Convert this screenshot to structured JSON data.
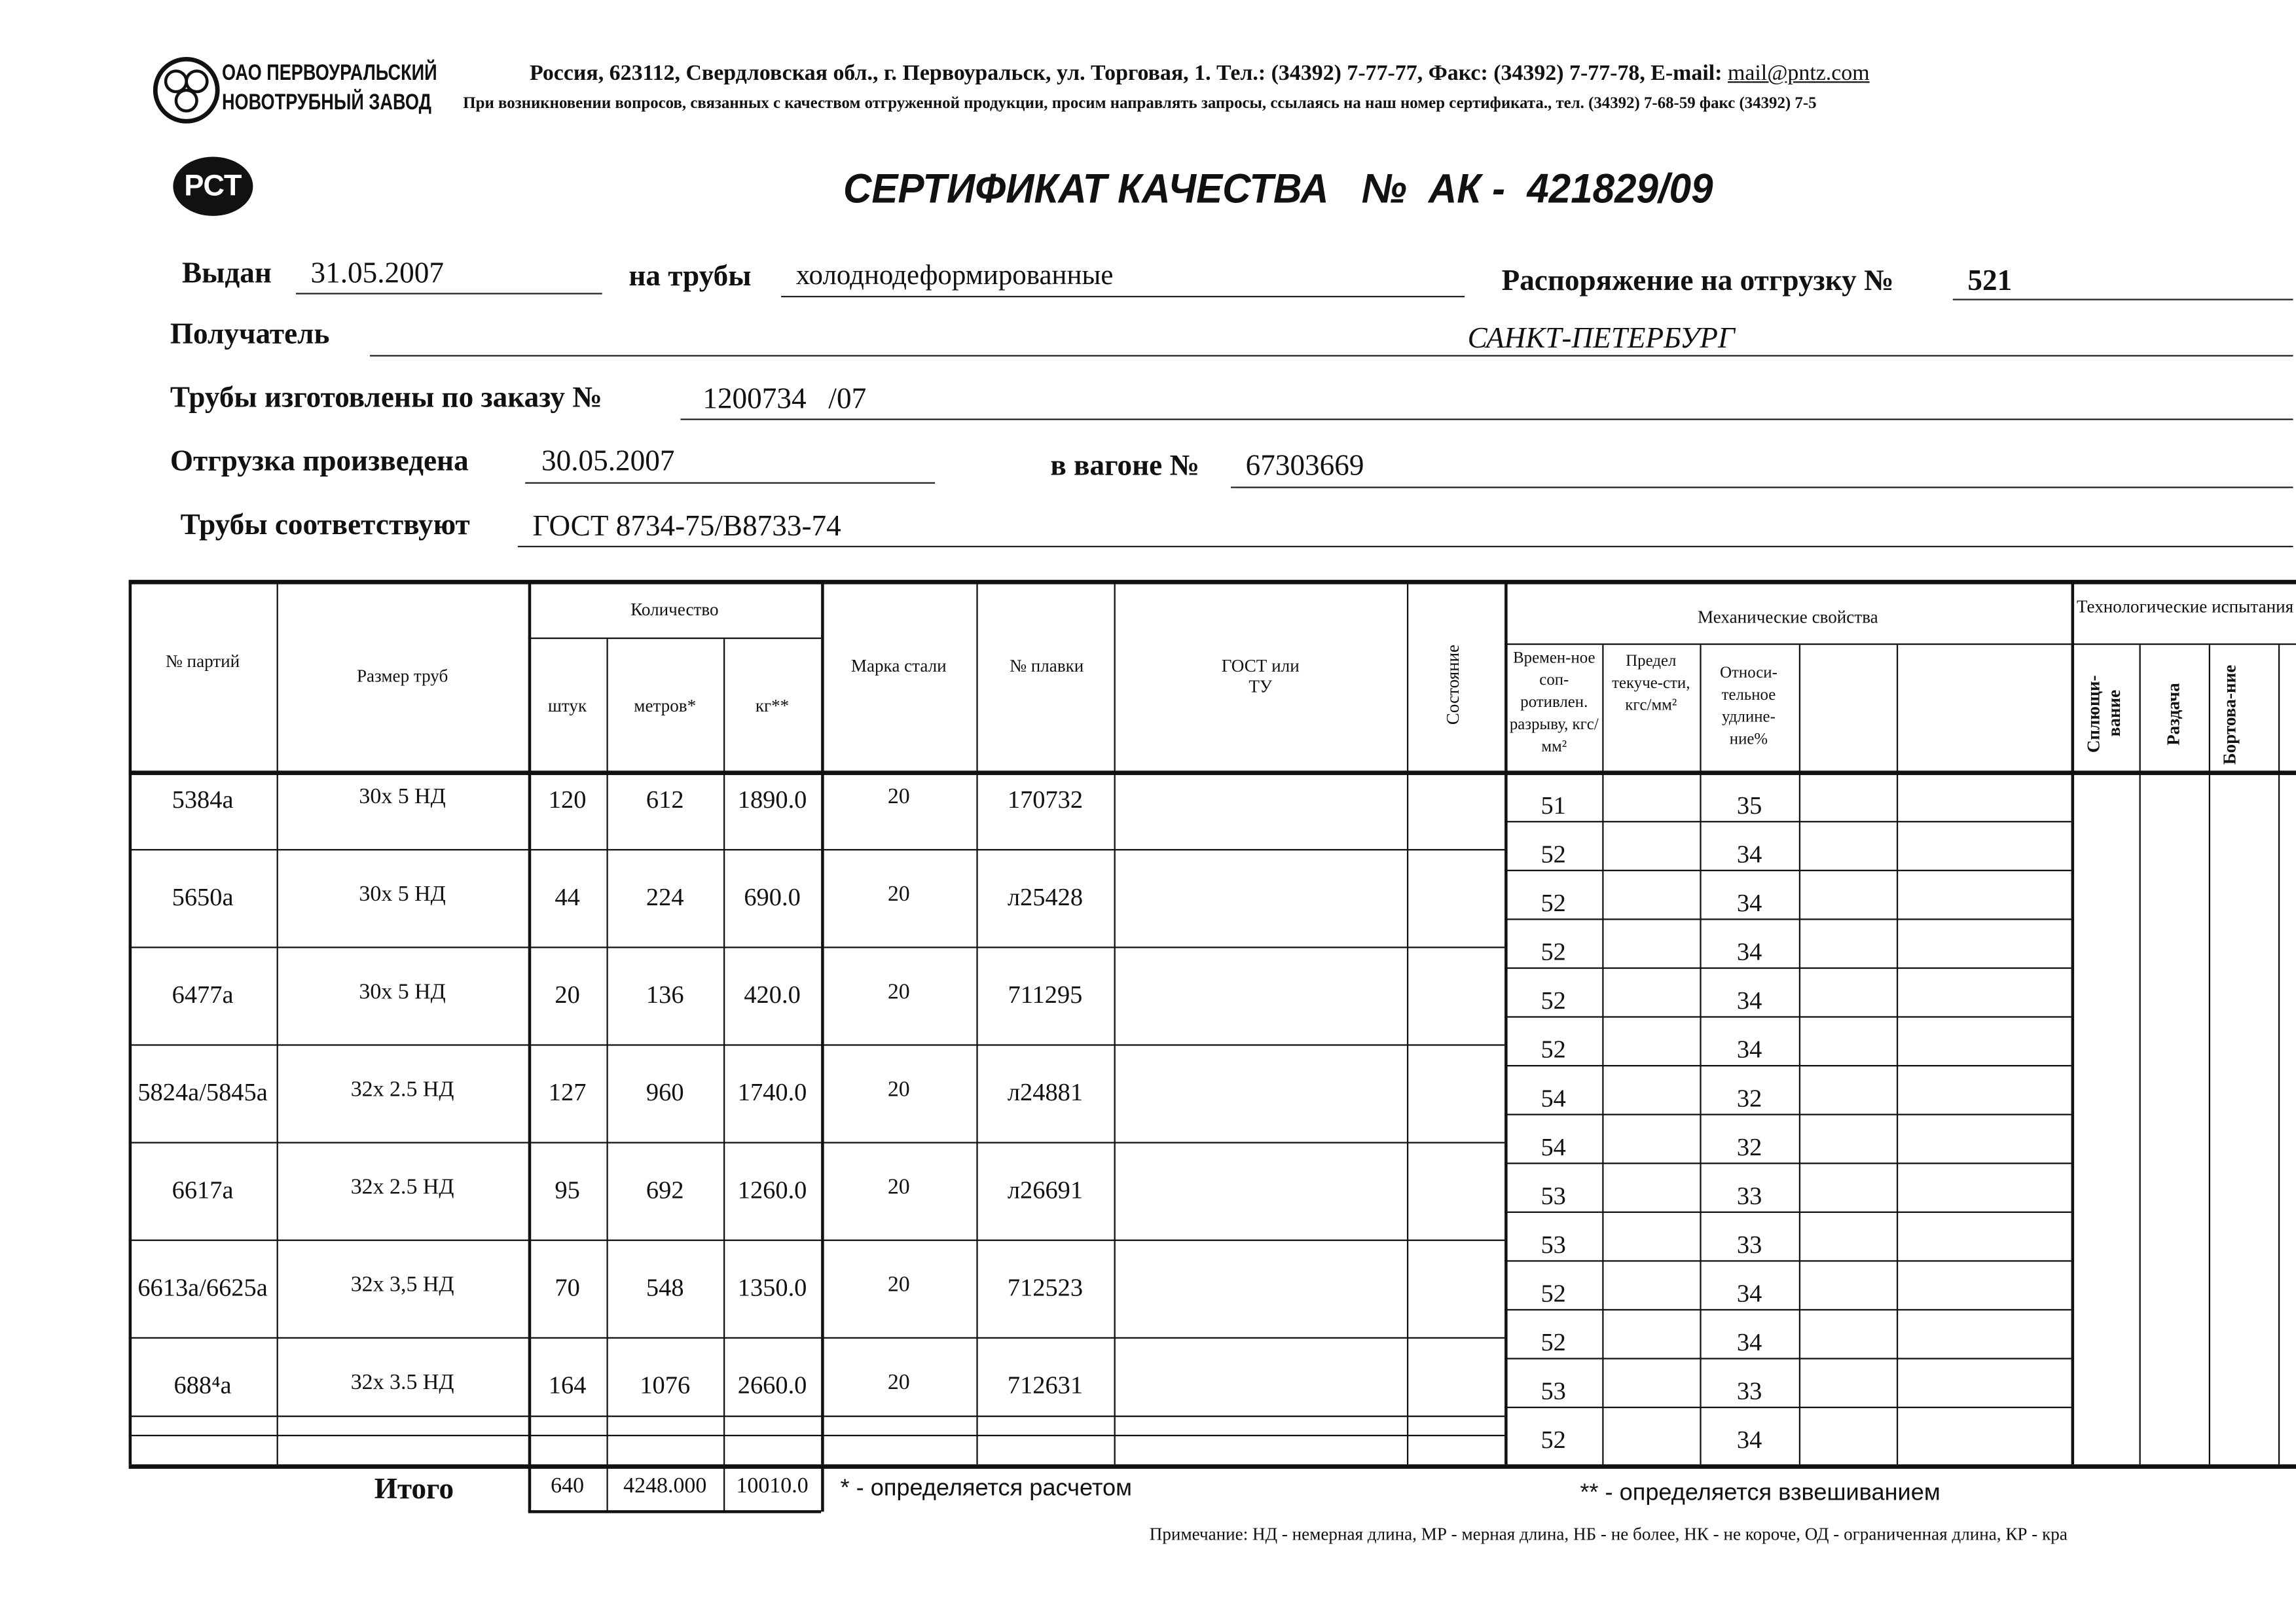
{
  "company": {
    "logo_text": [
      "ОАО ПЕРВОУРАЛЬСКИЙ",
      "НОВОТРУБНЫЙ ЗАВОД"
    ],
    "address": "Россия, 623112, Свердловская обл., г. Первоуральск, ул. Торговая, 1. Тел.: (34392) 7-77-77, Факс: (34392) 7-77-78,  E-mail: ",
    "email": "mail@pntz.com",
    "notice": "При возникновении вопросов, связанных с качеством отгруженной продукции, просим направлять запросы, ссылаясь на наш номер сертификата., тел. (34392) 7-68-59 факс (34392) 7-5"
  },
  "cert_mark": "РСТ",
  "title": "СЕРТИФИКАТ КАЧЕСТВА   №  АК -  421829/09",
  "fields": {
    "issued_label": "Выдан",
    "issued": "31.05.2007",
    "pipes_label": "на трубы",
    "pipes": "холоднодеформированные",
    "order_label": "Распоряжение на отгрузку №",
    "order": "521",
    "recipient_label": "Получатель",
    "recipient": "САНКТ-ПЕТЕРБУРГ",
    "made_label": "Трубы изготовлены по заказу №",
    "made": "1200734   /07",
    "shipped_label": "Отгрузка произведена",
    "shipped": "30.05.2007",
    "wagon_label": "в вагоне №",
    "wagon": "67303669",
    "conform_label": "Трубы соответствуют",
    "conform": "ГОСТ 8734-75/В8733-74"
  },
  "table": {
    "headers": {
      "batch": "№ партий",
      "size": "Размер труб",
      "quantity": "Количество",
      "pcs": "штук",
      "meters": "метров*",
      "kg": "кг**",
      "steel": "Марка стали",
      "heat": "№ плавки",
      "gost": "ГОСТ или ТУ",
      "state": "Состояние",
      "mech": "Механические свойства",
      "tensile": "Времен-ное соп-ротивлен. разрыву, кгс/мм²",
      "yield": "Предел текуче-сти, кгс/мм²",
      "elong": "Относи-тельное удлине-ние%",
      "tech": "Технологические испытания",
      "flatten": "Сплющи-вание",
      "expand": "Раздача",
      "flange": "Бортова-ние"
    },
    "rows": [
      {
        "batch": "5384а",
        "size": "30х 5 НД",
        "pcs": "120",
        "meters": "612",
        "kg": "1890.0",
        "steel": "20",
        "heat": "170732"
      },
      {
        "batch": "5650а",
        "size": "30х 5 НД",
        "pcs": "44",
        "meters": "224",
        "kg": "690.0",
        "steel": "20",
        "heat": "л25428"
      },
      {
        "batch": "6477а",
        "size": "30х 5 НД",
        "pcs": "20",
        "meters": "136",
        "kg": "420.0",
        "steel": "20",
        "heat": "711295"
      },
      {
        "batch": "5824а/5845а",
        "size": "32х 2.5 НД",
        "pcs": "127",
        "meters": "960",
        "kg": "1740.0",
        "steel": "20",
        "heat": "л24881"
      },
      {
        "batch": "6617а",
        "size": "32х 2.5 НД",
        "pcs": "95",
        "meters": "692",
        "kg": "1260.0",
        "steel": "20",
        "heat": "л26691"
      },
      {
        "batch": "6613а/6625а",
        "size": "32х 3,5 НД",
        "pcs": "70",
        "meters": "548",
        "kg": "1350.0",
        "steel": "20",
        "heat": "712523"
      },
      {
        "batch": "688⁴а",
        "size": "32х 3.5 НД",
        "pcs": "164",
        "meters": "1076",
        "kg": "2660.0",
        "steel": "20",
        "heat": "712631"
      }
    ],
    "mech": [
      {
        "t": "51",
        "e": "35"
      },
      {
        "t": "52",
        "e": "34"
      },
      {
        "t": "52",
        "e": "34"
      },
      {
        "t": "52",
        "e": "34"
      },
      {
        "t": "52",
        "e": "34"
      },
      {
        "t": "52",
        "e": "34"
      },
      {
        "t": "54",
        "e": "32"
      },
      {
        "t": "54",
        "e": "32"
      },
      {
        "t": "53",
        "e": "33"
      },
      {
        "t": "53",
        "e": "33"
      },
      {
        "t": "52",
        "e": "34"
      },
      {
        "t": "52",
        "e": "34"
      },
      {
        "t": "53",
        "e": "33"
      },
      {
        "t": "52",
        "e": "34"
      }
    ],
    "total_label": "Итого",
    "total_pcs": "640",
    "total_meters": "4248.000",
    "total_kg": "10010.0"
  },
  "footnotes": {
    "calc": "* - определяется расчетом",
    "weigh": "** - определяется взвешиванием",
    "note": "Примечание: НД - немерная длина, МР - мерная длина, НБ - не более, НК - не короче, ОД - ограниченная длина, КР - кра"
  }
}
